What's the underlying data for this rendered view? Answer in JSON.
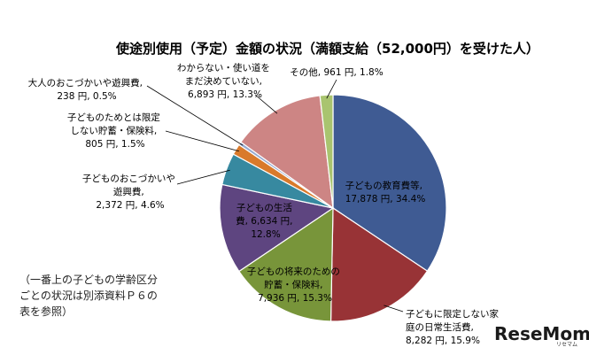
{
  "chart_data": {
    "type": "pie",
    "title": "使途別使用（予定）金額の状況（満額支給（52,000円）を受けた人）",
    "slices": [
      {
        "name": "子どもの教育費等",
        "value": 17878,
        "percent": 34.4,
        "value_label": "17,878 円, 34.4%",
        "color": "#3f5b93"
      },
      {
        "name": "子どもに限定しない家庭の日常生活費",
        "value": 8282,
        "percent": 15.9,
        "value_label": "8,282 円, 15.9%",
        "color": "#983336"
      },
      {
        "name": "子どもの将来のための貯蓄・保険料",
        "value": 7936,
        "percent": 15.3,
        "value_label": "7,936 円, 15.3%",
        "color": "#78953a"
      },
      {
        "name": "子どもの生活費",
        "value": 6634,
        "percent": 12.8,
        "value_label": "6,634 円, 12.8%",
        "color": "#5e4580"
      },
      {
        "name": "子どものおこづかいや遊興費",
        "value": 2372,
        "percent": 4.6,
        "value_label": "2,372 円, 4.6%",
        "color": "#3789a0"
      },
      {
        "name": "子どものためとは限定しない貯蓄・保険料",
        "value": 805,
        "percent": 1.5,
        "value_label": "805 円, 1.5%",
        "color": "#d97a2b"
      },
      {
        "name": "大人のおこづかいや遊興費",
        "value": 238,
        "percent": 0.5,
        "value_label": "238 円, 0.5%",
        "color": "#95a9cf"
      },
      {
        "name": "わからない・使い道をまだ決めていない",
        "value": 6893,
        "percent": 13.3,
        "value_label": "6,893 円, 13.3%",
        "color": "#cd8584"
      },
      {
        "name": "その他",
        "value": 961,
        "percent": 1.8,
        "value_label": "その他, 961 円, 1.8%",
        "color": "#a9c46f"
      }
    ],
    "labels": {
      "education": [
        "子どもの教育費等,",
        "17,878 円, 34.4%"
      ],
      "daily": [
        "子どもに限定しない家",
        "庭の日常生活費,",
        "8,282 円, 15.9%"
      ],
      "future": [
        "子どもの将来のための",
        "貯蓄・保険料,",
        "7,936 円, 15.3%"
      ],
      "living": [
        "子どもの生活",
        "費, 6,634 円,",
        "12.8%"
      ],
      "kids_pocket": [
        "子どものおこづかいや",
        "遊興費,",
        "2,372 円, 4.6%"
      ],
      "savings": [
        "子どものためとは限定",
        "しない貯蓄・保険料,",
        "805 円, 1.5%"
      ],
      "adult": [
        "大人のおこづかいや遊興費,",
        "238 円, 0.5%"
      ],
      "unknown": [
        "わからない・使い道を",
        "まだ決めていない,",
        "6,893 円, 13.3%"
      ],
      "other": [
        "その他, 961 円, 1.8%"
      ]
    },
    "note": [
      "（一番上の子どもの学齢区分",
      "ごとの状況は別添資料Ｐ６の",
      "表を参照）"
    ]
  },
  "watermark": {
    "text": "ReseMom",
    "sub": "リセマム"
  }
}
